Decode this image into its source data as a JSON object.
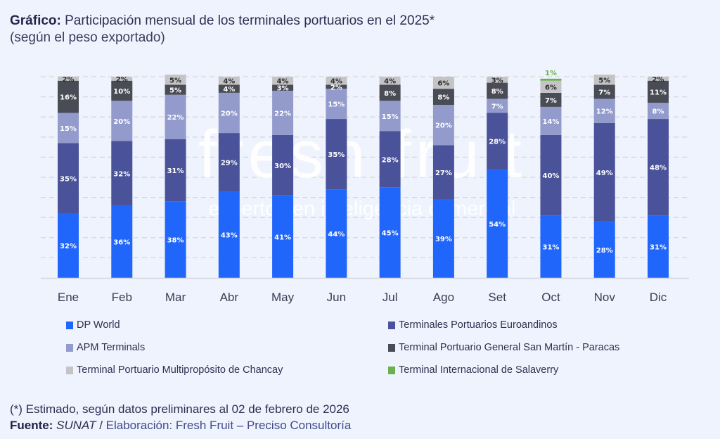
{
  "title": {
    "prefix": "Gráfico:",
    "text": " Participación mensual de los terminales portuarios en el 2025*",
    "subtitle": "(según el peso exportado)"
  },
  "watermark": {
    "brand": "fresh fruit",
    "tagline": "expertos en inteligencia comercial"
  },
  "footer": {
    "note": "(*) Estimado, según datos preliminares al 02 de febrero de 2026",
    "source_label": "Fuente:",
    "source_name": "SUNAT",
    "separator": " / ",
    "elaboration": "Elaboración: Fresh Fruit – Preciso Consultoría"
  },
  "chart_data": {
    "type": "bar",
    "stacked": true,
    "title": "Participación mensual de los terminales portuarios en el 2025*",
    "subtitle": "(según el peso exportado)",
    "xlabel": "",
    "ylabel": "",
    "ylim": [
      0,
      100
    ],
    "unit": "%",
    "grid": true,
    "legend_position": "bottom",
    "categories": [
      "Ene",
      "Feb",
      "Mar",
      "Abr",
      "May",
      "Jun",
      "Jul",
      "Ago",
      "Set",
      "Oct",
      "Nov",
      "Dic"
    ],
    "series": [
      {
        "name": "DP World",
        "color": "#2166fb",
        "label_color": "#ffffff",
        "values": [
          32,
          36,
          38,
          43,
          41,
          44,
          45,
          39,
          54,
          31,
          28,
          31
        ]
      },
      {
        "name": "Terminales Portuarios Euroandinos",
        "color": "#4a5399",
        "label_color": "#ffffff",
        "values": [
          35,
          32,
          31,
          29,
          30,
          35,
          28,
          27,
          28,
          40,
          49,
          48
        ]
      },
      {
        "name": "APM Terminals",
        "color": "#939bcc",
        "label_color": "#ffffff",
        "values": [
          15,
          20,
          22,
          20,
          22,
          15,
          15,
          20,
          7,
          14,
          12,
          8
        ]
      },
      {
        "name": "Terminal Portuario General San Martín - Paracas",
        "color": "#4a4c55",
        "label_color": "#ffffff",
        "values": [
          16,
          10,
          5,
          4,
          3,
          2,
          8,
          8,
          8,
          7,
          7,
          11
        ]
      },
      {
        "name": "Terminal Portuario Multipropósito de Chancay",
        "color": "#c4c4c6",
        "label_color": "#2a2a2a",
        "values": [
          2,
          2,
          5,
          4,
          4,
          4,
          4,
          6,
          3,
          6,
          5,
          2
        ]
      },
      {
        "name": "Terminal Internacional de Salaverry",
        "color": "#6ab04c",
        "label_color": "#6ab04c",
        "values": [
          0,
          0,
          0,
          0,
          0,
          0,
          0,
          0,
          0,
          1,
          0,
          0
        ]
      }
    ]
  }
}
